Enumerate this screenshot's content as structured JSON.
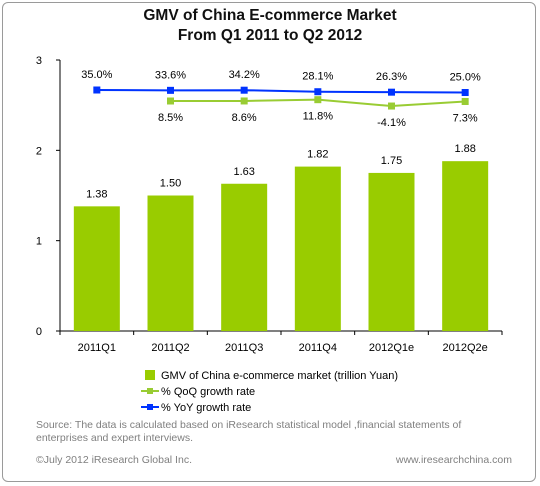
{
  "title_line1": "GMV of China E-commerce Market",
  "title_line2": "From Q1 2011 to Q2 2012",
  "source": "Source: The data is calculated based on  iResearch statistical model ,financial statements of enterprises and expert interviews.",
  "copyright": "©July 2012 iResearch Global Inc.",
  "website": "www.iresearchchina.com",
  "colors": {
    "bar": "#99cc00",
    "qoq": "#99cc33",
    "yoy": "#0033ff",
    "axis": "#000000",
    "grid_bg": "#ffffff"
  },
  "chart_data": {
    "type": "bar",
    "categories": [
      "2011Q1",
      "2011Q2",
      "2011Q3",
      "2011Q4",
      "2012Q1e",
      "2012Q2e"
    ],
    "ylim": [
      0,
      3
    ],
    "yticks": [
      "0",
      "1",
      "2",
      "3"
    ],
    "series": [
      {
        "name": "GMV of China e-commerce market  (trillion Yuan)",
        "kind": "bar",
        "values": [
          1.38,
          1.5,
          1.63,
          1.82,
          1.75,
          1.88
        ],
        "labels": [
          "1.38",
          "1.50",
          "1.63",
          "1.82",
          "1.75",
          "1.88"
        ]
      },
      {
        "name": "% QoQ growth rate",
        "kind": "line",
        "values": [
          null,
          8.5,
          8.6,
          11.8,
          -4.1,
          7.3
        ],
        "labels": [
          "",
          "8.5%",
          "8.6%",
          "11.8%",
          "-4.1%",
          "7.3%"
        ]
      },
      {
        "name": "% YoY growth rate",
        "kind": "line",
        "values": [
          35.0,
          33.6,
          34.2,
          28.1,
          26.3,
          25.0
        ],
        "labels": [
          "35.0%",
          "33.6%",
          "34.2%",
          "28.1%",
          "26.3%",
          "25.0%"
        ]
      }
    ]
  }
}
